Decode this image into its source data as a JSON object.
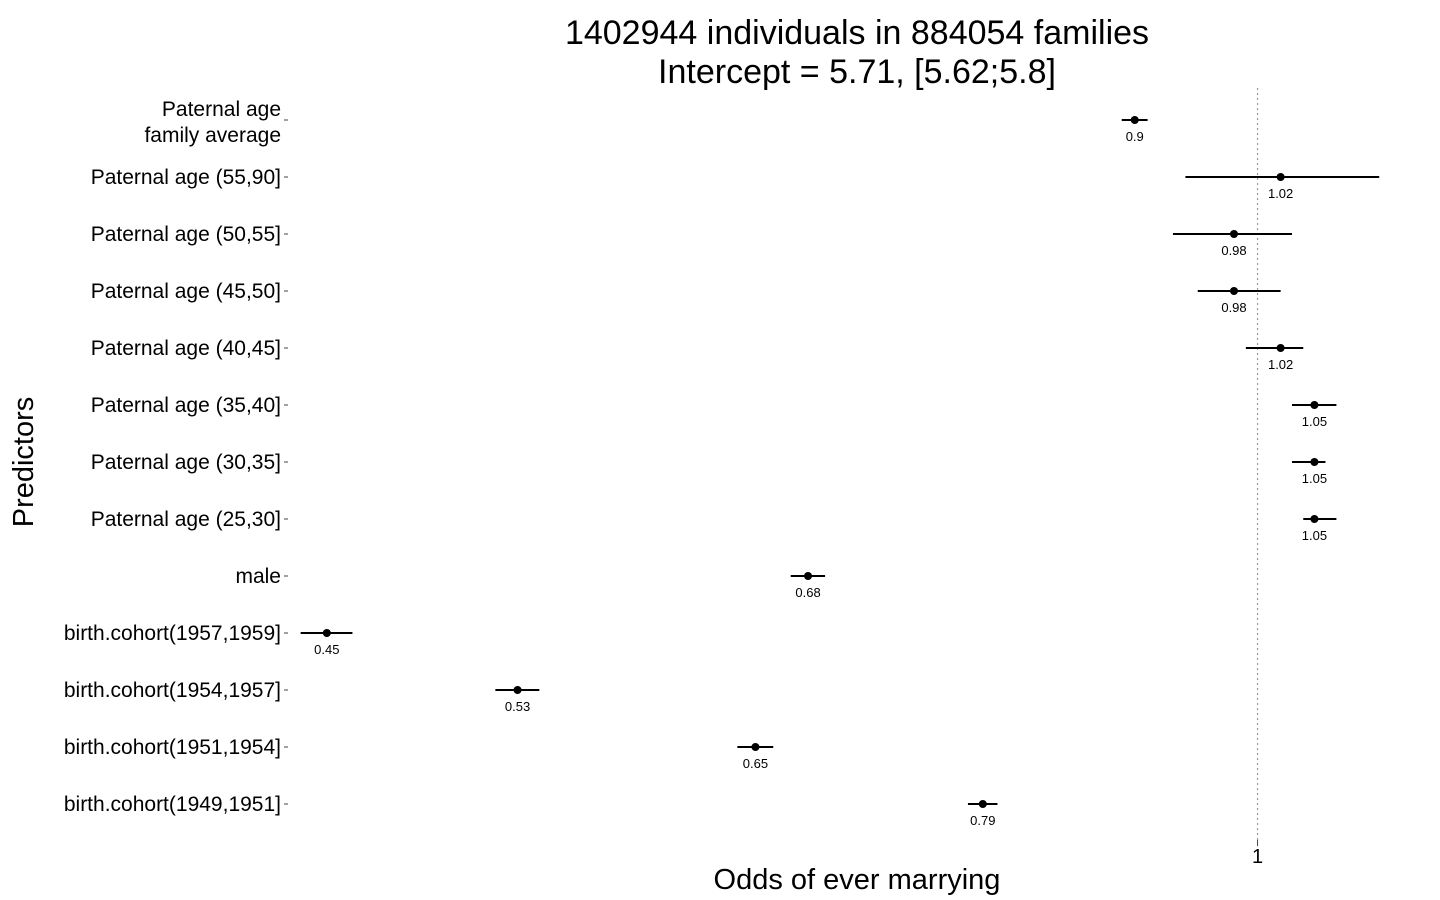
{
  "chart_data": {
    "type": "scatter",
    "subtype": "forest-plot",
    "title_lines": [
      "1402944 individuals in 884054 families",
      "Intercept = 5.71, [5.62;5.8]"
    ],
    "xlabel": "Odds of ever marrying",
    "ylabel": "Predictors",
    "x_scale": "log",
    "xlim": [
      0.436,
      1.13
    ],
    "x_ticks": [
      1
    ],
    "x_tick_labels": [
      "1"
    ],
    "reference_line": 1,
    "grid": false,
    "legend": "none",
    "point_color": "#000000",
    "reference_line_color": "#999999",
    "predictors": [
      {
        "label": "Paternal age\nfamily average",
        "estimate": 0.9,
        "lower": 0.89,
        "upper": 0.91,
        "value_label": "0.9"
      },
      {
        "label": "Paternal age (55,90]",
        "estimate": 1.02,
        "lower": 0.94,
        "upper": 1.11,
        "value_label": "1.02"
      },
      {
        "label": "Paternal age (50,55]",
        "estimate": 0.98,
        "lower": 0.93,
        "upper": 1.03,
        "value_label": "0.98"
      },
      {
        "label": "Paternal age (45,50]",
        "estimate": 0.98,
        "lower": 0.95,
        "upper": 1.02,
        "value_label": "0.98"
      },
      {
        "label": "Paternal age (40,45]",
        "estimate": 1.02,
        "lower": 0.99,
        "upper": 1.04,
        "value_label": "1.02"
      },
      {
        "label": "Paternal age (35,40]",
        "estimate": 1.05,
        "lower": 1.03,
        "upper": 1.07,
        "value_label": "1.05"
      },
      {
        "label": "Paternal age (30,35]",
        "estimate": 1.05,
        "lower": 1.03,
        "upper": 1.06,
        "value_label": "1.05"
      },
      {
        "label": "Paternal age (25,30]",
        "estimate": 1.05,
        "lower": 1.04,
        "upper": 1.07,
        "value_label": "1.05"
      },
      {
        "label": "male",
        "estimate": 0.68,
        "lower": 0.67,
        "upper": 0.69,
        "value_label": "0.68"
      },
      {
        "label": "birth.cohort(1957,1959]",
        "estimate": 0.45,
        "lower": 0.44,
        "upper": 0.46,
        "value_label": "0.45"
      },
      {
        "label": "birth.cohort(1954,1957]",
        "estimate": 0.53,
        "lower": 0.52,
        "upper": 0.54,
        "value_label": "0.53"
      },
      {
        "label": "birth.cohort(1951,1954]",
        "estimate": 0.65,
        "lower": 0.64,
        "upper": 0.66,
        "value_label": "0.65"
      },
      {
        "label": "birth.cohort(1949,1951]",
        "estimate": 0.79,
        "lower": 0.78,
        "upper": 0.8,
        "value_label": "0.79"
      }
    ]
  }
}
